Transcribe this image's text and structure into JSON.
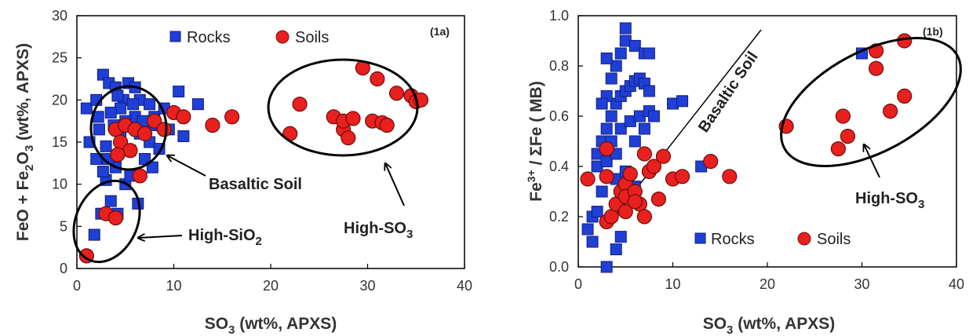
{
  "chart_data": [
    {
      "type": "scatter",
      "panel_label": "(1a)",
      "xlabel": {
        "main": "SO",
        "sub": "3",
        "rest": "  (wt%, APXS)"
      },
      "ylabel": {
        "p1": "FeO + Fe",
        "sub": "2",
        "p2": "O",
        "sub2": "3",
        "p3": "  (wt%,  APXS)"
      },
      "xlim": [
        0,
        40
      ],
      "ylim": [
        0,
        30
      ],
      "xticks": [
        "0",
        "10",
        "20",
        "30",
        "40"
      ],
      "yticks": [
        "0",
        "5",
        "10",
        "15",
        "20",
        "25",
        "30"
      ],
      "legend": {
        "rocks": "Rocks",
        "soils": "Soils",
        "position": "top"
      },
      "series": [
        {
          "name": "Rocks",
          "color": "#1f3fd6",
          "marker": "square",
          "points": [
            [
              1.8,
              4
            ],
            [
              2.5,
              6.5
            ],
            [
              3.5,
              8
            ],
            [
              4.2,
              6.5
            ],
            [
              5,
              10
            ],
            [
              6.3,
              7.7
            ],
            [
              3,
              10.5
            ],
            [
              4,
              12
            ],
            [
              5.5,
              11
            ],
            [
              2,
              13
            ],
            [
              1.3,
              15
            ],
            [
              1,
              19
            ],
            [
              2,
              20
            ],
            [
              2.7,
              23
            ],
            [
              3.3,
              22
            ],
            [
              4,
              21.5
            ],
            [
              4.8,
              20
            ],
            [
              5.3,
              22
            ],
            [
              6,
              21.5
            ],
            [
              4.5,
              19
            ],
            [
              3.5,
              18.5
            ],
            [
              6.5,
              20
            ],
            [
              7.5,
              19.5
            ],
            [
              8,
              18
            ],
            [
              2.3,
              16.5
            ],
            [
              3,
              14.5
            ],
            [
              4.5,
              15.5
            ],
            [
              5.5,
              14
            ],
            [
              6.5,
              16
            ],
            [
              7.5,
              15
            ],
            [
              8.5,
              14.2
            ],
            [
              9.5,
              16.5
            ],
            [
              10.5,
              21
            ],
            [
              11,
              15.7
            ],
            [
              12.5,
              19.5
            ],
            [
              7,
              13
            ],
            [
              6,
              18
            ],
            [
              5,
              17.5
            ],
            [
              3.8,
              17
            ],
            [
              2.2,
              18
            ],
            [
              4.2,
              20.5
            ],
            [
              6.8,
              17.5
            ],
            [
              8,
              17
            ],
            [
              9,
              19
            ],
            [
              5.8,
              19.5
            ],
            [
              3.2,
              13
            ],
            [
              7.8,
              12
            ],
            [
              2.7,
              11.5
            ]
          ]
        },
        {
          "name": "Soils",
          "color": "#e8201e",
          "marker": "circle",
          "points": [
            [
              1,
              1.5
            ],
            [
              3,
              6.5
            ],
            [
              4,
              6
            ],
            [
              6.5,
              11
            ],
            [
              4,
              16.5
            ],
            [
              5,
              17
            ],
            [
              4.5,
              15
            ],
            [
              6,
              16.5
            ],
            [
              5.5,
              14
            ],
            [
              4.2,
              13.5
            ],
            [
              7,
              16
            ],
            [
              8,
              17.5
            ],
            [
              9,
              16.5
            ],
            [
              10,
              18.5
            ],
            [
              11,
              18
            ],
            [
              14,
              17
            ],
            [
              16,
              18
            ],
            [
              22,
              16
            ],
            [
              23,
              19.5
            ],
            [
              26.5,
              18
            ],
            [
              27.5,
              16.5
            ],
            [
              27.5,
              17.5
            ],
            [
              28,
              15.5
            ],
            [
              28.5,
              17.8
            ],
            [
              29.5,
              23.8
            ],
            [
              30.5,
              17.5
            ],
            [
              31,
              22.5
            ],
            [
              31.5,
              17.3
            ],
            [
              32,
              17
            ],
            [
              33,
              20.8
            ],
            [
              34.5,
              20.5
            ],
            [
              35,
              19.8
            ],
            [
              35.5,
              20
            ]
          ]
        }
      ],
      "annotations": {
        "basaltic": "Basaltic Soil",
        "high_sio2": {
          "main": "High-SiO",
          "sub": "2"
        },
        "high_so3": {
          "main": "High-SO",
          "sub": "3"
        }
      }
    },
    {
      "type": "scatter",
      "panel_label": "(1b)",
      "xlabel": {
        "main": "SO",
        "sub": "3",
        "rest": "  (wt%, APXS)"
      },
      "ylabel": {
        "p1": "Fe",
        "sup": "3+",
        "p2": " / ΣFe  ( MB)"
      },
      "xlim": [
        0,
        40
      ],
      "ylim": [
        0.0,
        1.0
      ],
      "xticks": [
        "0",
        "10",
        "20",
        "30",
        "40"
      ],
      "yticks": [
        "0.0",
        "0.2",
        "0.4",
        "0.6",
        "0.8",
        "1.0"
      ],
      "legend": {
        "rocks": "Rocks",
        "soils": "Soils",
        "position": "bottom"
      },
      "series": [
        {
          "name": "Rocks",
          "color": "#1f3fd6",
          "marker": "square",
          "points": [
            [
              3,
              0
            ],
            [
              4,
              0.07
            ],
            [
              4.5,
              0.12
            ],
            [
              1,
              0.15
            ],
            [
              1.5,
              0.1
            ],
            [
              1.5,
              0.2
            ],
            [
              2,
              0.22
            ],
            [
              2.5,
              0.3
            ],
            [
              2,
              0.4
            ],
            [
              2.5,
              0.5
            ],
            [
              3,
              0.55
            ],
            [
              3.5,
              0.6
            ],
            [
              4,
              0.65
            ],
            [
              4.5,
              0.68
            ],
            [
              5,
              0.7
            ],
            [
              5.5,
              0.72
            ],
            [
              6,
              0.74
            ],
            [
              6.5,
              0.75
            ],
            [
              7,
              0.73
            ],
            [
              7.5,
              0.7
            ],
            [
              3,
              0.68
            ],
            [
              3.5,
              0.75
            ],
            [
              4,
              0.8
            ],
            [
              4.5,
              0.85
            ],
            [
              5,
              0.9
            ],
            [
              5,
              0.95
            ],
            [
              6,
              0.88
            ],
            [
              7,
              0.85
            ],
            [
              7.5,
              0.85
            ],
            [
              3,
              0.83
            ],
            [
              2.5,
              0.65
            ],
            [
              3.5,
              0.5
            ],
            [
              4.5,
              0.55
            ],
            [
              5.5,
              0.58
            ],
            [
              6.5,
              0.6
            ],
            [
              7.5,
              0.62
            ],
            [
              8,
              0.6
            ],
            [
              10,
              0.65
            ],
            [
              11,
              0.66
            ],
            [
              2,
              0.45
            ],
            [
              3,
              0.42
            ],
            [
              4,
              0.45
            ],
            [
              6,
              0.5
            ],
            [
              7,
              0.55
            ],
            [
              13,
              0.4
            ],
            [
              30,
              0.85
            ],
            [
              4,
              0.35
            ],
            [
              5,
              0.38
            ],
            [
              6,
              0.32
            ]
          ]
        },
        {
          "name": "Soils",
          "color": "#e8201e",
          "marker": "circle",
          "points": [
            [
              1,
              0.35
            ],
            [
              3,
              0.47
            ],
            [
              3,
              0.36
            ],
            [
              3,
              0.18
            ],
            [
              3.5,
              0.2
            ],
            [
              4,
              0.25
            ],
            [
              4.5,
              0.3
            ],
            [
              5,
              0.33
            ],
            [
              5,
              0.28
            ],
            [
              5.5,
              0.37
            ],
            [
              6,
              0.3
            ],
            [
              6.5,
              0.25
            ],
            [
              7,
              0.2
            ],
            [
              7,
              0.45
            ],
            [
              7.5,
              0.38
            ],
            [
              8,
              0.4
            ],
            [
              8.5,
              0.27
            ],
            [
              9,
              0.44
            ],
            [
              10,
              0.35
            ],
            [
              11,
              0.36
            ],
            [
              14,
              0.42
            ],
            [
              16,
              0.36
            ],
            [
              22,
              0.56
            ],
            [
              27.5,
              0.47
            ],
            [
              28,
              0.6
            ],
            [
              28.5,
              0.52
            ],
            [
              31.5,
              0.86
            ],
            [
              31.5,
              0.79
            ],
            [
              33,
              0.62
            ],
            [
              34.5,
              0.68
            ],
            [
              34.5,
              0.9
            ],
            [
              5,
              0.22
            ],
            [
              6,
              0.26
            ]
          ]
        }
      ],
      "annotations": {
        "basaltic": "Basaltic Soil",
        "high_so3": {
          "main": "High-SO",
          "sub": "3"
        }
      }
    }
  ]
}
